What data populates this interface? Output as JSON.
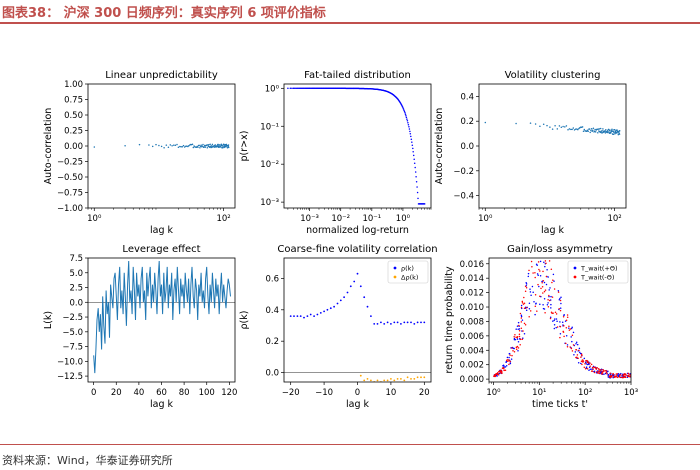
{
  "header": {
    "title": "图表38： 沪深 300 日频序列：真实序列 6 项评价指标"
  },
  "footer": {
    "source": "资料来源：Wind，华泰证券研究所"
  },
  "chart_data": [
    {
      "id": "p1",
      "type": "scatter",
      "title": "Linear unpredictability",
      "xlabel": "lag k",
      "ylabel": "Auto-correlation",
      "xscale": "log",
      "xlim": [
        0.8,
        150
      ],
      "ylim": [
        -1.0,
        1.0
      ],
      "yticks": [
        -1.0,
        -0.75,
        -0.5,
        -0.25,
        0.0,
        0.25,
        0.5,
        0.75,
        1.0
      ],
      "ytick_labels": [
        "−1.00",
        "−0.75",
        "−0.50",
        "−0.25",
        "0.00",
        "0.25",
        "0.50",
        "0.75",
        "1.00"
      ],
      "xticks": [
        1,
        100
      ],
      "xtick_labels": [
        "10⁰",
        "10²"
      ],
      "series": [
        {
          "color": "#1f77b4",
          "generator": "acf_linear",
          "x_range": [
            1,
            120
          ],
          "y_center": 0.0,
          "y_noise": 0.03
        }
      ]
    },
    {
      "id": "p2",
      "type": "scatter",
      "title": "Fat-tailed distribution",
      "xlabel": "normalized log-return",
      "ylabel": "p(r>x)",
      "xscale": "log",
      "yscale": "log",
      "xlim": [
        0.00015,
        8
      ],
      "ylim": [
        0.0007,
        1.3
      ],
      "yticks": [
        1,
        0.1,
        0.01,
        0.001
      ],
      "ytick_labels": [
        "10⁰",
        "10⁻¹",
        "10⁻²",
        "10⁻³"
      ],
      "xticks": [
        0.001,
        0.01,
        0.1,
        1
      ],
      "xtick_labels": [
        "10⁻³",
        "10⁻²",
        "10⁻¹",
        "10⁰"
      ],
      "series": [
        {
          "color": "#0000ff",
          "generator": "tail_cdf",
          "x_range": [
            0.0002,
            5.0
          ],
          "points": 220
        }
      ]
    },
    {
      "id": "p3",
      "type": "scatter",
      "title": "Volatility clustering",
      "xlabel": "lag k",
      "ylabel": "Auto-correlation",
      "xscale": "log",
      "xlim": [
        0.8,
        150
      ],
      "ylim": [
        -0.5,
        0.5
      ],
      "yticks": [
        -0.4,
        -0.2,
        0.0,
        0.2,
        0.4
      ],
      "ytick_labels": [
        "−0.4",
        "−0.2",
        "0.0",
        "0.2",
        "0.4"
      ],
      "xticks": [
        1,
        100
      ],
      "xtick_labels": [
        "10⁰",
        "10²"
      ],
      "series": [
        {
          "color": "#1f77b4",
          "generator": "acf_decay",
          "x_range": [
            1,
            120
          ],
          "y_start": 0.2,
          "y_end": 0.11,
          "y_noise": 0.02
        }
      ]
    },
    {
      "id": "p4",
      "type": "line",
      "title": "Leverage effect",
      "xlabel": "lag k",
      "ylabel": "L(k)",
      "xlim": [
        -5,
        125
      ],
      "ylim": [
        -13.5,
        7.5
      ],
      "yticks": [
        -12.5,
        -10.0,
        -7.5,
        -5.0,
        -2.5,
        0.0,
        2.5,
        5.0,
        7.5
      ],
      "ytick_labels": [
        "−12.5",
        "−10.0",
        "−7.5",
        "−5.0",
        "−2.5",
        "0.0",
        "2.5",
        "5.0",
        "7.5"
      ],
      "xticks": [
        0,
        20,
        40,
        60,
        80,
        100,
        120
      ],
      "xtick_labels": [
        "0",
        "20",
        "40",
        "60",
        "80",
        "100",
        "120"
      ],
      "hline": 0,
      "series": [
        {
          "color": "#1f77b4",
          "y": [
            -9,
            -12,
            -8,
            -3,
            -1,
            -5,
            -2,
            -8,
            1,
            -4,
            -7,
            2,
            -2,
            0,
            -6,
            3,
            1,
            -1,
            4,
            5,
            1,
            -3,
            3,
            6,
            -1,
            2,
            -2,
            5,
            1,
            -4,
            3,
            7,
            0,
            2,
            -2,
            6,
            2,
            -3,
            5,
            1,
            3,
            -1,
            4,
            6,
            0,
            2,
            -3,
            5,
            1,
            4,
            6,
            -1,
            3,
            0,
            5,
            2,
            -2,
            4,
            7,
            1,
            3,
            -2,
            5,
            0,
            2,
            6,
            -1,
            3,
            1,
            5,
            -3,
            2,
            4,
            0,
            6,
            2,
            -2,
            4,
            1,
            3,
            -1,
            5,
            2,
            0,
            4,
            -2,
            3,
            6,
            1,
            -1,
            4,
            2,
            -3,
            3,
            1,
            5,
            0,
            2,
            -1,
            4,
            6,
            1,
            -2,
            3,
            0,
            5,
            2,
            -1,
            4,
            1,
            3,
            -2,
            2,
            5,
            0,
            3,
            1,
            -1,
            2,
            4,
            3,
            1
          ]
        }
      ]
    },
    {
      "id": "p5",
      "type": "scatter",
      "title": "Coarse-fine volatility correlation",
      "xlabel": "lag k",
      "ylabel": "ρ(k)",
      "xlim": [
        -22,
        22
      ],
      "ylim": [
        -0.06,
        0.73
      ],
      "yticks": [
        0.0,
        0.2,
        0.4,
        0.6
      ],
      "ytick_labels": [
        "0.0",
        "0.2",
        "0.4",
        "0.6"
      ],
      "xticks": [
        -20,
        -10,
        0,
        10,
        20
      ],
      "xtick_labels": [
        "−20",
        "−10",
        "0",
        "10",
        "20"
      ],
      "hline": 0,
      "legend": {
        "position": "top-right",
        "entries": [
          "ρ(k)",
          "Δρ(k)"
        ]
      },
      "series": [
        {
          "name": "ρ(k)",
          "color": "#0000ff",
          "x": [
            -20,
            -19,
            -18,
            -17,
            -16,
            -15,
            -14,
            -13,
            -12,
            -11,
            -10,
            -9,
            -8,
            -7,
            -6,
            -5,
            -4,
            -3,
            -2,
            -1,
            0,
            1,
            2,
            3,
            4,
            5,
            6,
            7,
            8,
            9,
            10,
            11,
            12,
            13,
            14,
            15,
            16,
            17,
            18,
            19,
            20
          ],
          "y": [
            0.36,
            0.36,
            0.36,
            0.36,
            0.35,
            0.36,
            0.37,
            0.36,
            0.37,
            0.38,
            0.39,
            0.4,
            0.41,
            0.42,
            0.44,
            0.46,
            0.48,
            0.51,
            0.55,
            0.58,
            0.63,
            0.55,
            0.48,
            0.42,
            0.36,
            0.31,
            0.31,
            0.32,
            0.31,
            0.32,
            0.31,
            0.32,
            0.32,
            0.31,
            0.32,
            0.32,
            0.32,
            0.31,
            0.32,
            0.32,
            0.32
          ]
        },
        {
          "name": "Δρ(k)",
          "color": "#ffa500",
          "x": [
            1,
            2,
            3,
            4,
            5,
            6,
            7,
            8,
            9,
            10,
            11,
            12,
            13,
            14,
            15,
            16,
            17,
            18,
            19,
            20
          ],
          "y": [
            -0.02,
            -0.05,
            -0.04,
            -0.05,
            -0.06,
            -0.05,
            -0.06,
            -0.05,
            -0.05,
            -0.04,
            -0.05,
            -0.04,
            -0.04,
            -0.05,
            -0.03,
            -0.04,
            -0.04,
            -0.03,
            -0.03,
            -0.03
          ]
        }
      ]
    },
    {
      "id": "p6",
      "type": "scatter",
      "title": "Gain/loss asymmetry",
      "xlabel": "time ticks t'",
      "ylabel": "return time probability",
      "xscale": "log",
      "xlim": [
        0.8,
        1000
      ],
      "ylim": [
        -0.0004,
        0.0168
      ],
      "yticks": [
        0.0,
        0.002,
        0.004,
        0.006,
        0.008,
        0.01,
        0.012,
        0.014,
        0.016
      ],
      "ytick_labels": [
        "0.000",
        "0.002",
        "0.004",
        "0.006",
        "0.008",
        "0.010",
        "0.012",
        "0.014",
        "0.016"
      ],
      "xticks": [
        1,
        10,
        100,
        1000
      ],
      "xtick_labels": [
        "10⁰",
        "10¹",
        "10²",
        "10³"
      ],
      "legend": {
        "position": "top-right",
        "entries": [
          "T_wait(+Θ)",
          "T_wait(-Θ)"
        ]
      },
      "series": [
        {
          "name": "T_wait(+Θ)",
          "color": "#0000ff",
          "generator": "return_time",
          "seed": 7
        },
        {
          "name": "T_wait(-Θ)",
          "color": "#ff0000",
          "generator": "return_time",
          "seed": 13
        }
      ]
    }
  ]
}
